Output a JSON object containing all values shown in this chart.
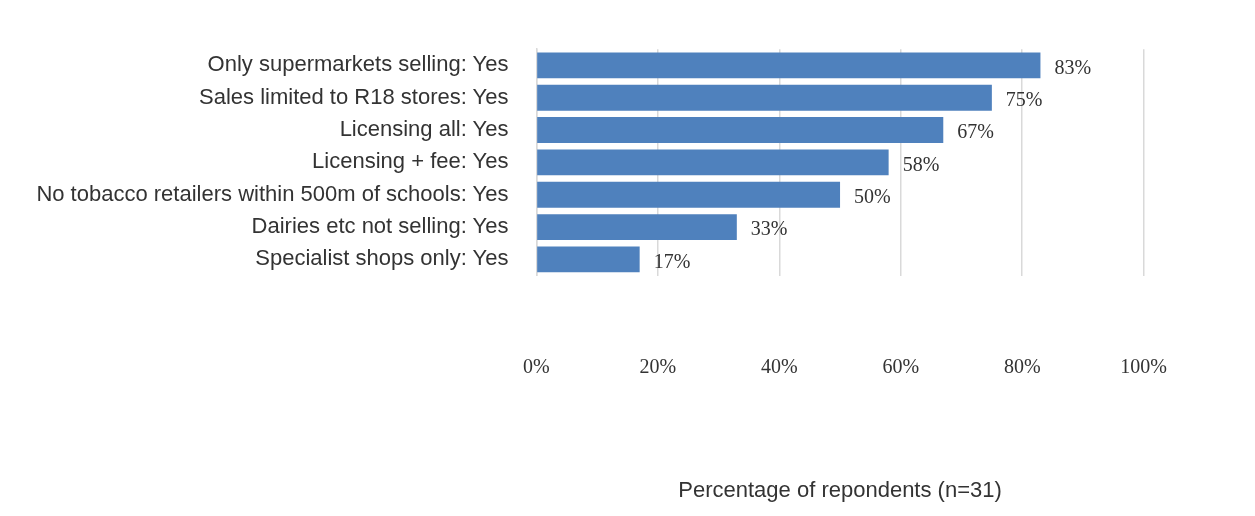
{
  "chart_data": {
    "type": "bar",
    "orientation": "horizontal",
    "xlabel": "Percentage of repondents (n=31)",
    "categories": [
      "Only supermarkets selling: Yes",
      "Sales limited to R18 stores: Yes",
      "Licensing all: Yes",
      "Licensing + fee: Yes",
      "No tobacco retailers within 500m of schools: Yes",
      "Dairies etc not selling: Yes",
      "Specialist shops only: Yes"
    ],
    "values": [
      83,
      75,
      67,
      58,
      50,
      33,
      17
    ],
    "value_labels": [
      "83%",
      "75%",
      "67%",
      "58%",
      "50%",
      "33%",
      "17%"
    ],
    "color": "#4f81bd",
    "xlim": [
      0,
      100
    ],
    "xticks": [
      {
        "value": 0,
        "label": "0%"
      },
      {
        "value": 20,
        "label": "20%"
      },
      {
        "value": 40,
        "label": "40%"
      },
      {
        "value": 60,
        "label": "60%"
      },
      {
        "value": 80,
        "label": "80%"
      },
      {
        "value": 100,
        "label": "100%"
      }
    ],
    "grid": "x",
    "legend": false
  }
}
